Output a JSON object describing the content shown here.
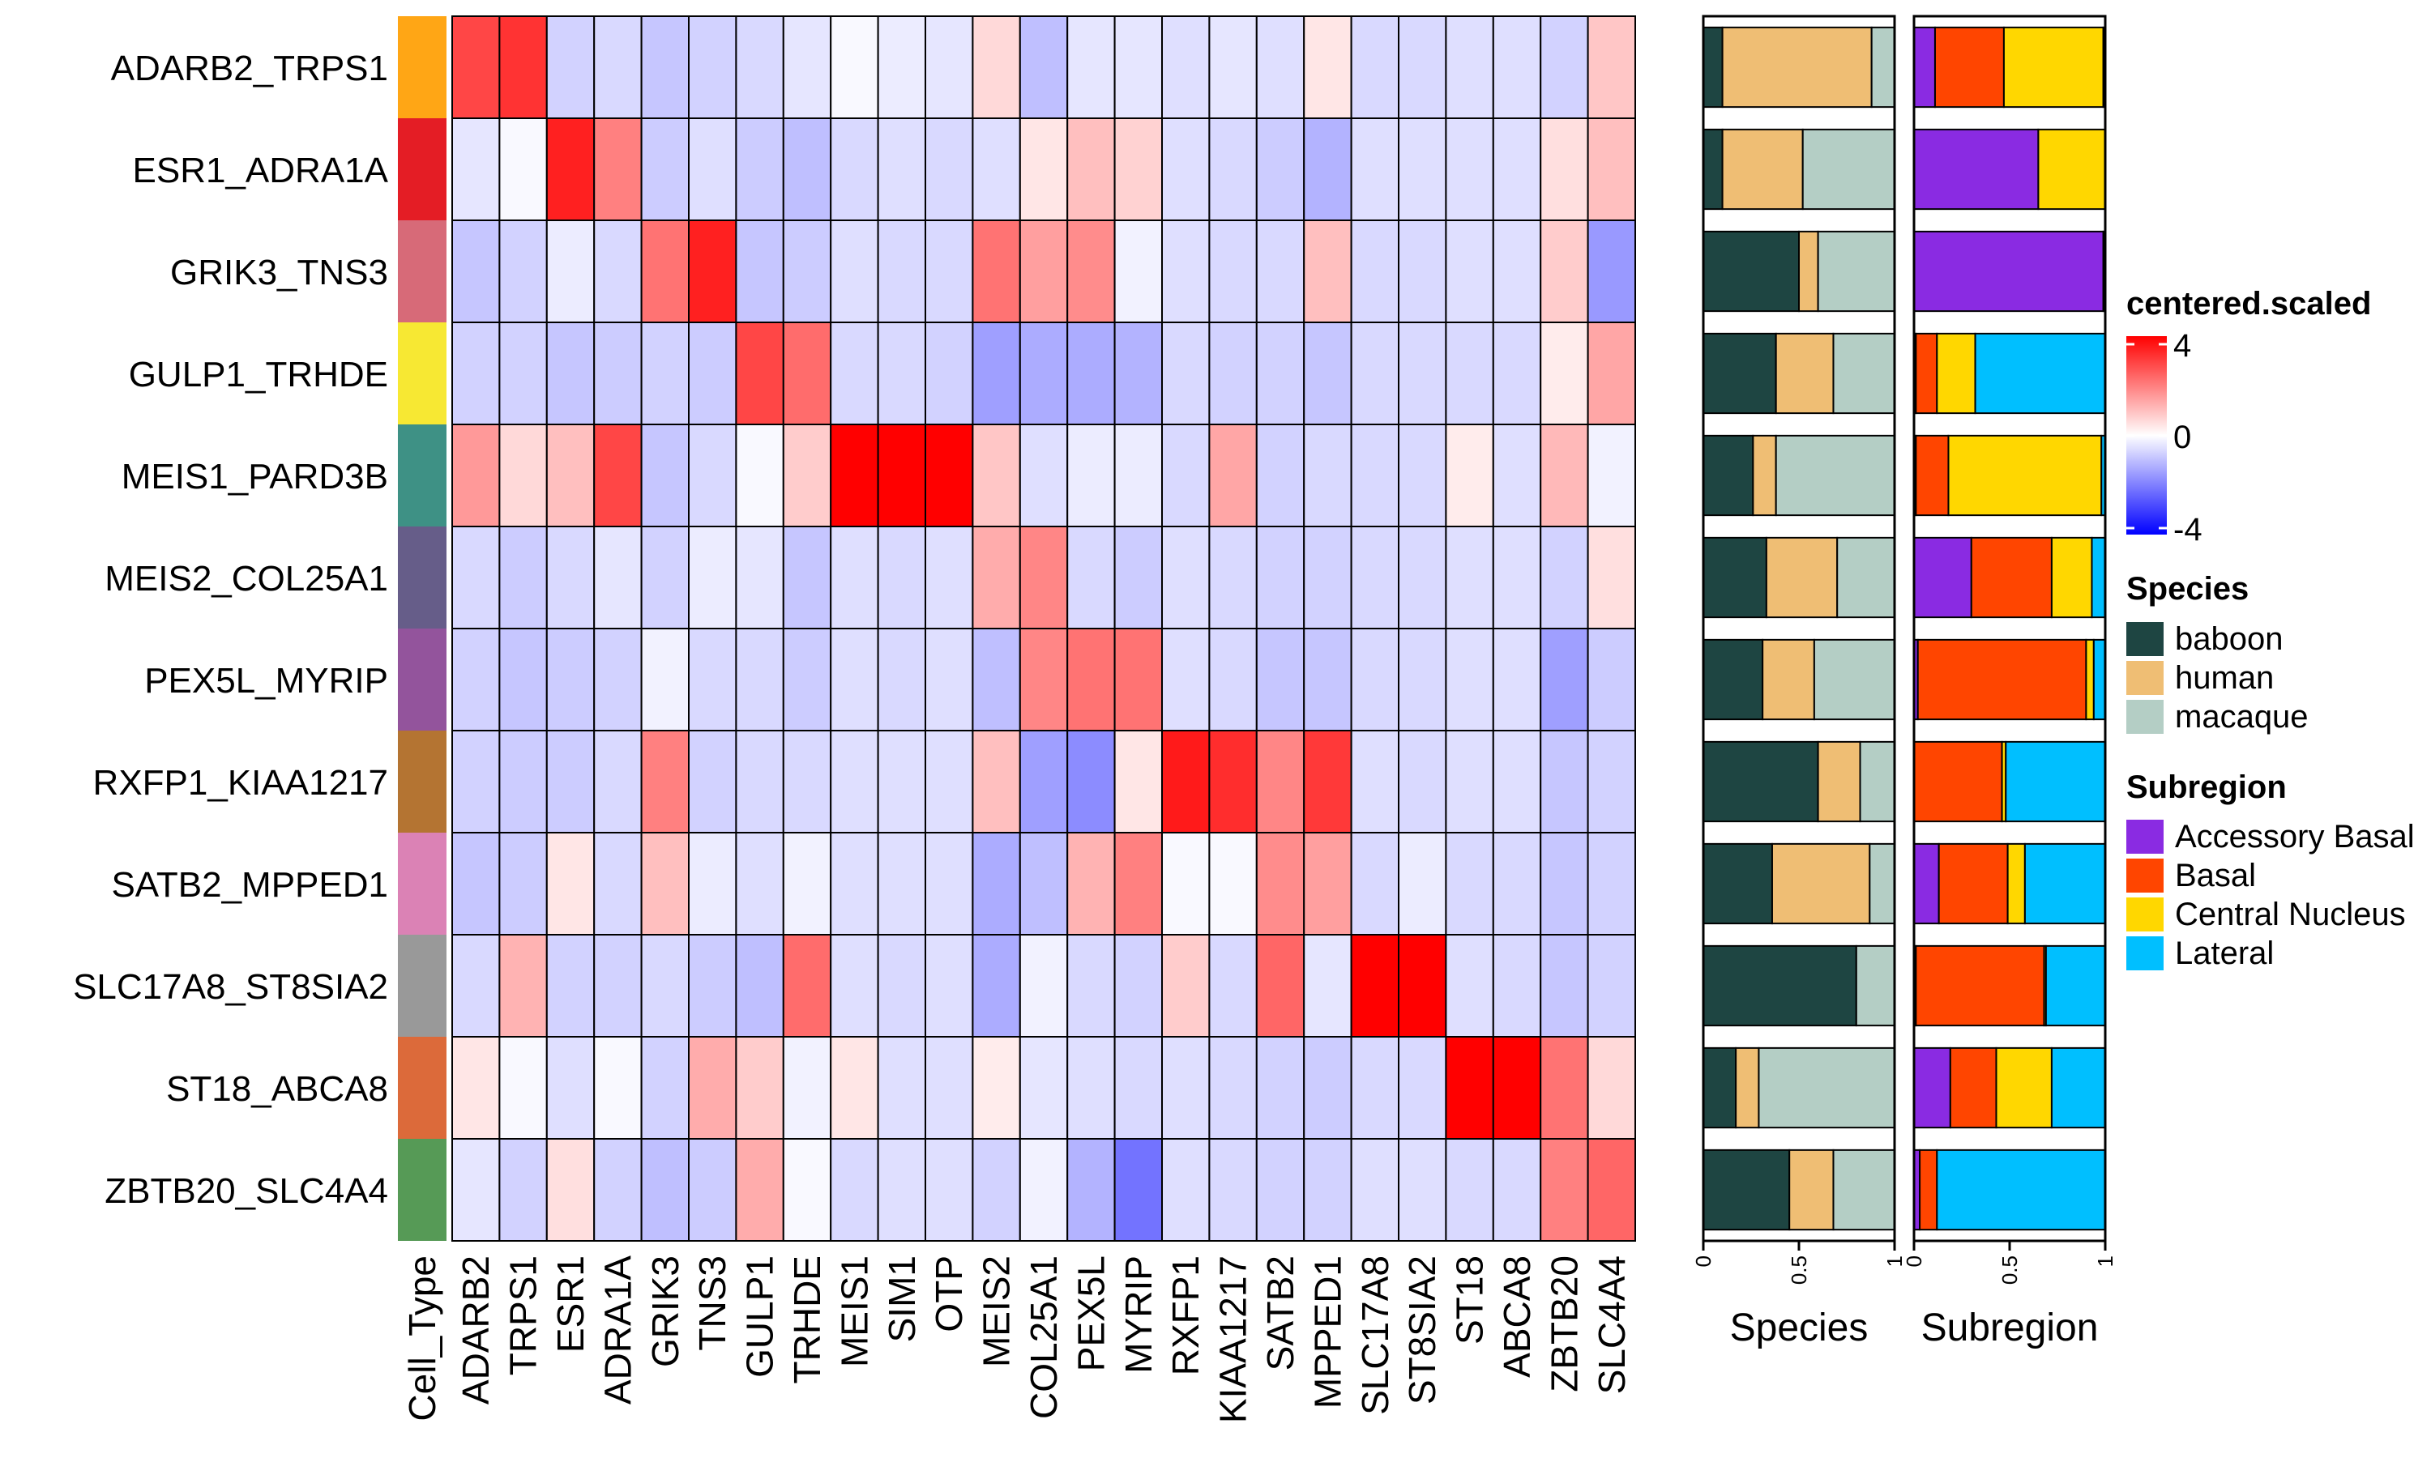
{
  "chart_data": {
    "type": "heatmap",
    "rows": [
      "ADARB2_TRPS1",
      "ESR1_ADRA1A",
      "GRIK3_TNS3",
      "GULP1_TRHDE",
      "MEIS1_PARD3B",
      "MEIS2_COL25A1",
      "PEX5L_MYRIP",
      "RXFP1_KIAA1217",
      "SATB2_MPPED1",
      "SLC17A8_ST8SIA2",
      "ST18_ABCA8",
      "ZBTB20_SLC4A4"
    ],
    "columns": [
      "ADARB2",
      "TRPS1",
      "ESR1",
      "ADRA1A",
      "GRIK3",
      "TNS3",
      "GULP1",
      "TRHDE",
      "MEIS1",
      "SIM1",
      "OTP",
      "MEIS2",
      "COL25A1",
      "PEX5L",
      "MYRIP",
      "RXFP1",
      "KIAA1217",
      "SATB2",
      "MPPED1",
      "SLC17A8",
      "ST8SIA2",
      "ST18",
      "ABCA8",
      "ZBTB20",
      "SLC4A4"
    ],
    "values": [
      [
        2.9,
        3.2,
        -0.7,
        -0.6,
        -0.9,
        -0.7,
        -0.6,
        -0.4,
        -0.1,
        -0.3,
        -0.4,
        0.6,
        -1.0,
        -0.4,
        -0.4,
        -0.5,
        -0.4,
        -0.5,
        0.4,
        -0.6,
        -0.6,
        -0.5,
        -0.5,
        -0.7,
        0.9
      ],
      [
        -0.4,
        -0.1,
        3.5,
        2.0,
        -0.8,
        -0.5,
        -0.8,
        -1.0,
        -0.6,
        -0.5,
        -0.6,
        -0.5,
        0.4,
        1.0,
        0.7,
        -0.5,
        -0.6,
        -0.8,
        -1.2,
        -0.5,
        -0.5,
        -0.5,
        -0.5,
        0.5,
        1.0
      ],
      [
        -0.9,
        -0.7,
        -0.3,
        -0.6,
        2.2,
        3.5,
        -0.9,
        -0.8,
        -0.5,
        -0.6,
        -0.6,
        2.2,
        1.5,
        1.8,
        -0.2,
        -0.5,
        -0.6,
        -0.6,
        1.0,
        -0.6,
        -0.6,
        -0.5,
        -0.5,
        0.8,
        -1.6
      ],
      [
        -0.7,
        -0.7,
        -0.9,
        -0.8,
        -0.7,
        -0.8,
        2.9,
        2.3,
        -0.6,
        -0.6,
        -0.7,
        -1.5,
        -1.3,
        -1.3,
        -1.2,
        -0.6,
        -0.7,
        -0.7,
        -0.9,
        -0.6,
        -0.6,
        -0.6,
        -0.6,
        0.3,
        1.4
      ],
      [
        1.6,
        0.6,
        1.0,
        2.9,
        -0.9,
        -0.6,
        -0.1,
        0.8,
        4.0,
        4.1,
        4.0,
        0.9,
        -0.5,
        -0.3,
        -0.3,
        -0.6,
        1.4,
        -0.7,
        -0.6,
        -0.6,
        -0.6,
        0.3,
        -0.5,
        1.1,
        -0.2
      ],
      [
        -0.6,
        -0.8,
        -0.6,
        -0.4,
        -0.7,
        -0.3,
        -0.4,
        -0.9,
        -0.5,
        -0.6,
        -0.5,
        1.3,
        1.9,
        -0.6,
        -0.8,
        -0.5,
        -0.6,
        -0.7,
        -0.7,
        -0.6,
        -0.6,
        -0.5,
        -0.5,
        -0.7,
        0.5
      ],
      [
        -0.7,
        -0.9,
        -0.8,
        -0.7,
        -0.2,
        -0.6,
        -0.6,
        -0.8,
        -0.5,
        -0.6,
        -0.5,
        -1.0,
        1.9,
        2.2,
        2.2,
        -0.5,
        -0.6,
        -0.9,
        -0.9,
        -0.6,
        -0.6,
        -0.5,
        -0.5,
        -1.5,
        -0.8
      ],
      [
        -0.7,
        -0.8,
        -0.8,
        -0.6,
        2.0,
        -0.7,
        -0.6,
        -0.6,
        -0.5,
        -0.5,
        -0.5,
        1.0,
        -1.5,
        -1.8,
        0.4,
        3.6,
        3.3,
        1.9,
        3.1,
        -0.5,
        -0.6,
        -0.5,
        -0.5,
        -0.9,
        -0.7
      ],
      [
        -0.9,
        -0.8,
        0.4,
        -0.6,
        1.0,
        -0.3,
        -0.5,
        -0.2,
        -0.5,
        -0.5,
        -0.5,
        -1.3,
        -1.0,
        1.2,
        2.0,
        -0.1,
        -0.1,
        1.8,
        1.5,
        -0.6,
        -0.3,
        -0.6,
        -0.6,
        -0.9,
        -0.7
      ],
      [
        -0.6,
        1.2,
        -0.7,
        -0.7,
        -0.6,
        -0.8,
        -1.0,
        2.3,
        -0.5,
        -0.6,
        -0.5,
        -1.3,
        -0.2,
        -0.6,
        -0.7,
        0.8,
        -0.6,
        2.4,
        -0.4,
        4.0,
        4.0,
        -0.5,
        -0.6,
        -0.9,
        -0.7
      ],
      [
        0.4,
        -0.1,
        -0.5,
        -0.1,
        -0.7,
        1.3,
        0.8,
        -0.2,
        0.4,
        -0.5,
        -0.5,
        0.3,
        -0.4,
        -0.5,
        -0.6,
        -0.5,
        -0.6,
        -0.7,
        -0.8,
        -0.6,
        -0.6,
        4.0,
        4.0,
        2.2,
        0.6
      ],
      [
        -0.4,
        -0.7,
        0.5,
        -0.7,
        -1.0,
        -0.8,
        1.3,
        -0.1,
        -0.6,
        -0.5,
        -0.5,
        -0.7,
        -0.2,
        -1.2,
        -2.2,
        -0.5,
        -0.6,
        -0.7,
        -0.7,
        -0.5,
        -0.5,
        -0.6,
        -0.6,
        2.0,
        2.4
      ]
    ],
    "row_annotation_label": "Cell_Type",
    "row_annotation_colors": [
      "#FFA615",
      "#E41D25",
      "#D76A78",
      "#F7E833",
      "#3E9185",
      "#665D89",
      "#93549C",
      "#B47432",
      "#DB82B5",
      "#999999",
      "#DC6A3A",
      "#569A56"
    ],
    "species_bars": {
      "label": "Species",
      "ticks": [
        "0",
        "0.5",
        "1"
      ],
      "categories": [
        "baboon",
        "human",
        "macaque"
      ],
      "colors": [
        "#1E4542",
        "#EFBE74",
        "#B4CEC5"
      ],
      "fractions": [
        [
          0.1,
          0.78,
          0.12
        ],
        [
          0.1,
          0.42,
          0.48
        ],
        [
          0.5,
          0.1,
          0.4
        ],
        [
          0.38,
          0.3,
          0.32
        ],
        [
          0.26,
          0.12,
          0.62
        ],
        [
          0.33,
          0.37,
          0.3
        ],
        [
          0.31,
          0.27,
          0.42
        ],
        [
          0.6,
          0.22,
          0.18
        ],
        [
          0.36,
          0.51,
          0.13
        ],
        [
          0.8,
          0.0,
          0.2
        ],
        [
          0.17,
          0.12,
          0.71
        ],
        [
          0.45,
          0.23,
          0.32
        ]
      ]
    },
    "subregion_bars": {
      "label": "Subregion",
      "ticks": [
        "0",
        "0.5",
        "1"
      ],
      "categories": [
        "Accessory Basal",
        "Basal",
        "Central Nucleus",
        "Lateral"
      ],
      "colors": [
        "#8A2BE2",
        "#FF4500",
        "#FFD700",
        "#00BFFF"
      ],
      "fractions": [
        [
          0.11,
          0.36,
          0.52,
          0.01
        ],
        [
          0.65,
          0.0,
          0.35,
          0.0
        ],
        [
          0.99,
          0.0,
          0.01,
          0.0
        ],
        [
          0.01,
          0.11,
          0.2,
          0.68
        ],
        [
          0.01,
          0.17,
          0.8,
          0.02
        ],
        [
          0.3,
          0.42,
          0.21,
          0.07
        ],
        [
          0.02,
          0.88,
          0.04,
          0.06
        ],
        [
          0.0,
          0.46,
          0.02,
          0.52
        ],
        [
          0.13,
          0.36,
          0.09,
          0.42
        ],
        [
          0.01,
          0.67,
          0.01,
          0.31
        ],
        [
          0.19,
          0.24,
          0.29,
          0.28
        ],
        [
          0.03,
          0.09,
          0.0,
          0.88
        ]
      ]
    },
    "legend": {
      "color_title": "centered.scaled",
      "color_ticks": [
        "4",
        "0",
        "-4"
      ],
      "color_range": [
        -4,
        4
      ],
      "species_title": "Species",
      "subregion_title": "Subregion"
    }
  }
}
